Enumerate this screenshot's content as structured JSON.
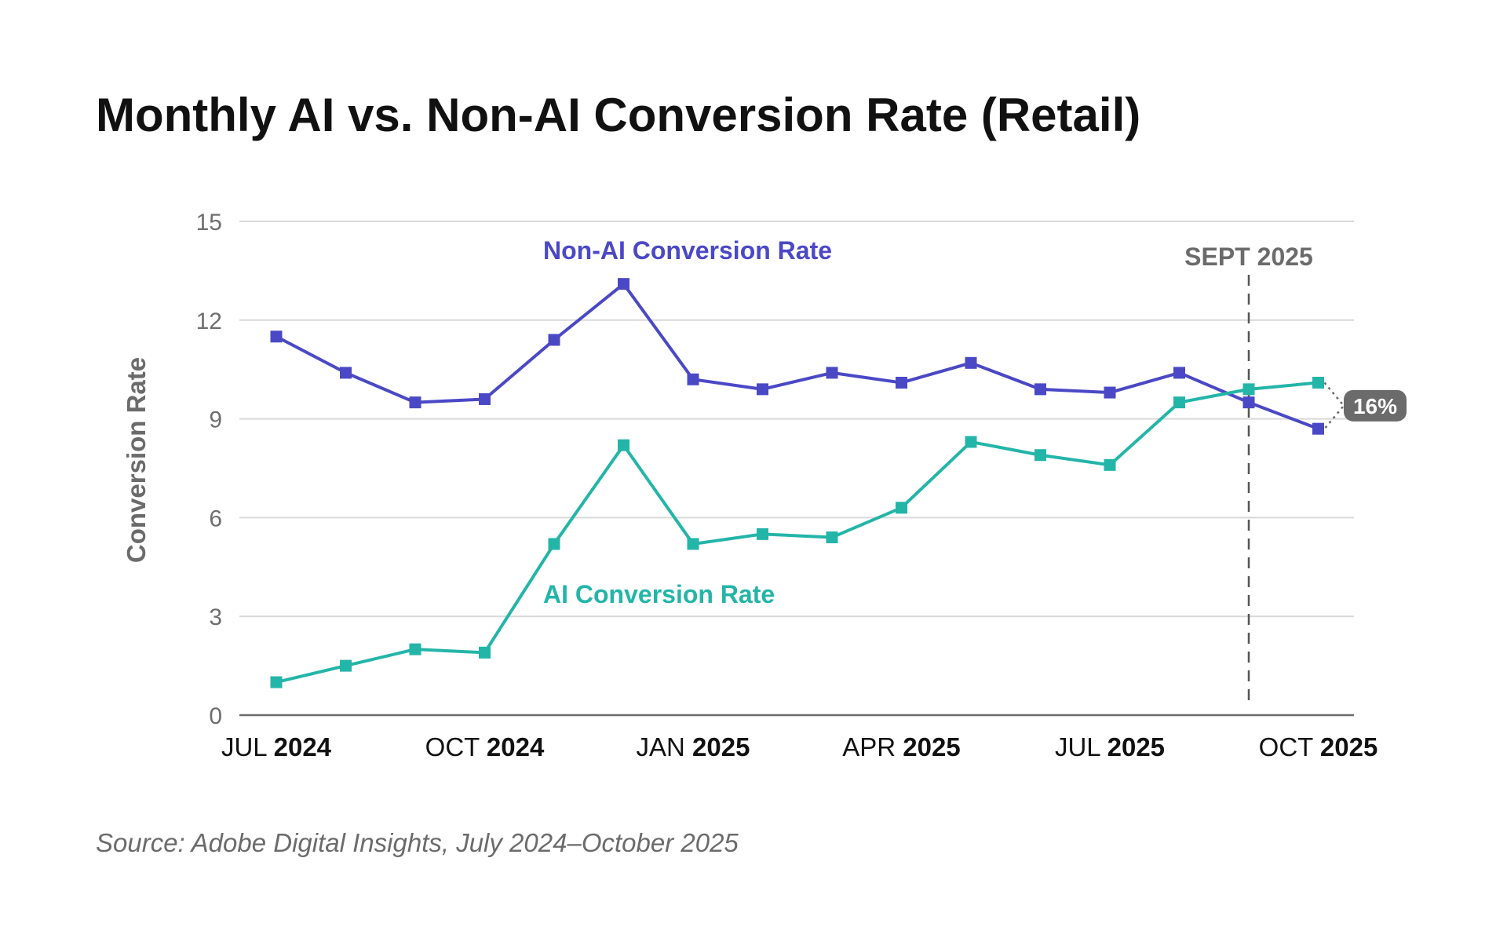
{
  "title": "Monthly AI vs. Non-AI Conversion Rate (Retail)",
  "source": "Source: Adobe Digital Insights, July 2024–October 2025",
  "colors": {
    "non_ai": "#4b48c6",
    "ai": "#23b5a8",
    "grid": "#d9d9d9",
    "axis": "#6b6b6b",
    "badge": "#6b6b6b"
  },
  "chart_data": {
    "type": "line",
    "ylabel": "Conversion Rate",
    "ylim": [
      0,
      15
    ],
    "yticks": [
      0,
      3,
      6,
      9,
      12,
      15
    ],
    "grid": true,
    "x": [
      "Jul 2024",
      "Aug 2024",
      "Sep 2024",
      "Oct 2024",
      "Nov 2024",
      "Dec 2024",
      "Jan 2025",
      "Feb 2025",
      "Mar 2025",
      "Apr 2025",
      "May 2025",
      "Jun 2025",
      "Jul 2025",
      "Aug 2025",
      "Sep 2025",
      "Oct 2025"
    ],
    "xticks": [
      {
        "index": 0,
        "month": "JUL",
        "year": "2024"
      },
      {
        "index": 3,
        "month": "OCT",
        "year": "2024"
      },
      {
        "index": 6,
        "month": "JAN",
        "year": "2025"
      },
      {
        "index": 9,
        "month": "APR",
        "year": "2025"
      },
      {
        "index": 12,
        "month": "JUL",
        "year": "2025"
      },
      {
        "index": 15,
        "month": "OCT",
        "year": "2025"
      }
    ],
    "series": [
      {
        "name": "Non-AI Conversion Rate",
        "color": "#4b48c6",
        "values": [
          11.5,
          10.4,
          9.5,
          9.6,
          11.4,
          13.1,
          10.2,
          9.9,
          10.4,
          10.1,
          10.7,
          9.9,
          9.8,
          10.4,
          9.5,
          8.7
        ]
      },
      {
        "name": "AI Conversion Rate",
        "color": "#23b5a8",
        "values": [
          1.0,
          1.5,
          2.0,
          1.9,
          5.2,
          8.2,
          5.2,
          5.5,
          5.4,
          6.3,
          8.3,
          7.9,
          7.6,
          9.5,
          9.9,
          10.1
        ]
      }
    ],
    "annotations": {
      "vline": {
        "index": 14,
        "label": "SEPT 2025"
      },
      "badge": {
        "index": 15,
        "label": "16%"
      }
    }
  }
}
